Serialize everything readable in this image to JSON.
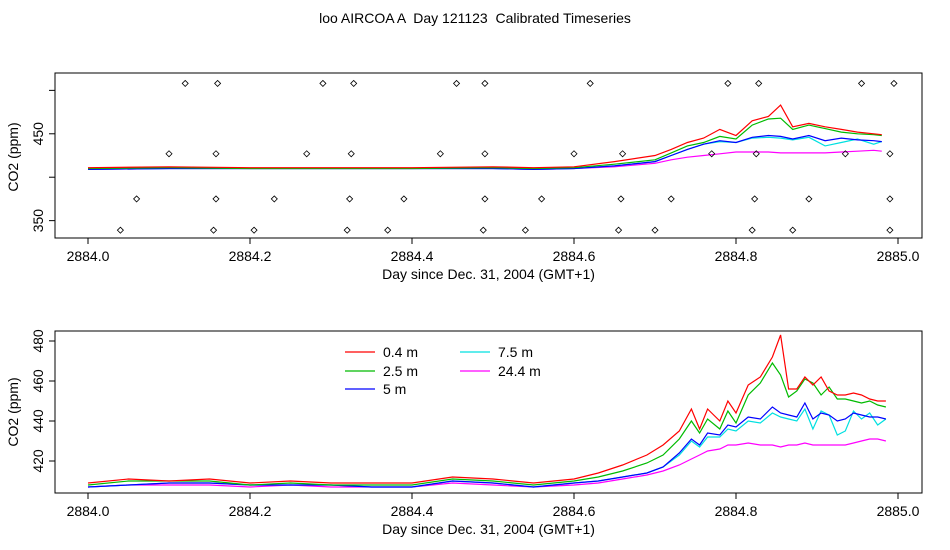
{
  "title": "loo AIRCOA A  Day 121123  Calibrated Timeseries",
  "chart_data": [
    {
      "type": "line",
      "ylabel": "CO2 (ppm)",
      "xlabel": "Day since Dec. 31, 2004 (GMT+1)",
      "xlim": [
        2884.0,
        2885.0
      ],
      "ylim": [
        330,
        520
      ],
      "xticks": [
        "2884.0",
        "2884.2",
        "2884.4",
        "2884.6",
        "2884.8",
        "2885.0"
      ],
      "yticks": [
        "350",
        "450"
      ],
      "grid": false,
      "x": [
        2884.0,
        2884.1,
        2884.2,
        2884.3,
        2884.4,
        2884.5,
        2884.55,
        2884.6,
        2884.65,
        2884.7,
        2884.72,
        2884.74,
        2884.76,
        2884.78,
        2884.8,
        2884.82,
        2884.84,
        2884.855,
        2884.87,
        2884.89,
        2884.91,
        2884.93,
        2884.95,
        2884.97,
        2884.98
      ],
      "series": [
        {
          "color": "#ff0000",
          "values": [
            411,
            412,
            411,
            411,
            411,
            412,
            411,
            412,
            418,
            425,
            432,
            440,
            445,
            455,
            448,
            465,
            470,
            483,
            458,
            462,
            458,
            455,
            452,
            450,
            449
          ]
        },
        {
          "color": "#00bb00",
          "values": [
            410,
            411,
            410,
            410,
            410,
            411,
            410,
            411,
            415,
            420,
            428,
            436,
            440,
            447,
            444,
            460,
            467,
            468,
            455,
            460,
            456,
            452,
            450,
            449,
            448
          ]
        },
        {
          "color": "#0000ff",
          "values": [
            409,
            410,
            410,
            410,
            410,
            410,
            409,
            410,
            413,
            418,
            425,
            432,
            438,
            442,
            440,
            446,
            448,
            447,
            444,
            448,
            442,
            445,
            443,
            442,
            441
          ]
        },
        {
          "color": "#00e0e0",
          "values": [
            409,
            410,
            410,
            410,
            410,
            410,
            409,
            410,
            413,
            418,
            425,
            432,
            438,
            441,
            440,
            445,
            446,
            445,
            443,
            446,
            436,
            440,
            444,
            438,
            441
          ]
        },
        {
          "color": "#ff00ff",
          "values": [
            409,
            410,
            410,
            410,
            410,
            410,
            409,
            410,
            412,
            416,
            420,
            423,
            425,
            427,
            429,
            429,
            429,
            428,
            428,
            428,
            428,
            429,
            430,
            431,
            430
          ]
        }
      ],
      "points": {
        "marker": "open-diamond",
        "x": [
          2884.04,
          2884.06,
          2884.1,
          2884.12,
          2884.155,
          2884.158,
          2884.158,
          2884.16,
          2884.205,
          2884.23,
          2884.27,
          2884.29,
          2884.32,
          2884.323,
          2884.325,
          2884.328,
          2884.37,
          2884.39,
          2884.435,
          2884.455,
          2884.488,
          2884.49,
          2884.49,
          2884.49,
          2884.54,
          2884.56,
          2884.6,
          2884.62,
          2884.655,
          2884.658,
          2884.66,
          2884.7,
          2884.72,
          2884.77,
          2884.79,
          2884.82,
          2884.823,
          2884.825,
          2884.828,
          2884.87,
          2884.89,
          2884.935,
          2884.955,
          2884.99,
          2884.99,
          2884.99,
          2884.995
        ],
        "y": [
          339,
          375,
          427,
          508,
          339,
          375,
          427,
          508,
          339,
          375,
          427,
          508,
          339,
          375,
          427,
          508,
          339,
          375,
          427,
          508,
          339,
          375,
          427,
          508,
          339,
          375,
          427,
          508,
          339,
          375,
          427,
          339,
          375,
          427,
          508,
          339,
          375,
          427,
          508,
          339,
          375,
          427,
          508,
          339,
          375,
          427,
          508
        ]
      }
    },
    {
      "type": "line",
      "ylabel": "CO2 (ppm)",
      "xlabel": "Day since Dec. 31, 2004 (GMT+1)",
      "xlim": [
        2884.0,
        2885.0
      ],
      "ylim": [
        404,
        485
      ],
      "xticks": [
        "2884.0",
        "2884.2",
        "2884.4",
        "2884.6",
        "2884.8",
        "2885.0"
      ],
      "yticks": [
        "420",
        "440",
        "460",
        "480"
      ],
      "grid": false,
      "legend": {
        "placement": "top-center"
      },
      "x": [
        2884.0,
        2884.05,
        2884.1,
        2884.15,
        2884.2,
        2884.25,
        2884.3,
        2884.35,
        2884.4,
        2884.45,
        2884.5,
        2884.55,
        2884.6,
        2884.63,
        2884.66,
        2884.69,
        2884.71,
        2884.73,
        2884.745,
        2884.755,
        2884.765,
        2884.78,
        2884.79,
        2884.8,
        2884.815,
        2884.83,
        2884.845,
        2884.855,
        2884.865,
        2884.875,
        2884.885,
        2884.895,
        2884.905,
        2884.915,
        2884.925,
        2884.935,
        2884.945,
        2884.955,
        2884.965,
        2884.975,
        2884.985
      ],
      "series": [
        {
          "name": "0.4 m",
          "color": "#ff0000",
          "values": [
            409,
            411,
            410,
            411,
            409,
            410,
            409,
            409,
            409,
            412,
            411,
            409,
            411,
            414,
            418,
            423,
            428,
            435,
            446,
            436,
            446,
            440,
            450,
            444,
            458,
            462,
            472,
            483,
            456,
            456,
            462,
            458,
            462,
            455,
            453,
            453,
            454,
            453,
            451,
            450,
            450
          ]
        },
        {
          "name": "2.5 m",
          "color": "#00bb00",
          "values": [
            408,
            410,
            410,
            410,
            408,
            409,
            408,
            408,
            408,
            411,
            410,
            408,
            410,
            412,
            415,
            419,
            423,
            431,
            440,
            434,
            441,
            436,
            445,
            439,
            453,
            459,
            469,
            463,
            452,
            455,
            461,
            459,
            453,
            457,
            451,
            451,
            450,
            449,
            450,
            448,
            447
          ]
        },
        {
          "name": "5 m",
          "color": "#0000ff",
          "values": [
            407,
            408,
            409,
            409,
            408,
            408,
            408,
            407,
            407,
            410,
            409,
            407,
            409,
            410,
            412,
            414,
            417,
            424,
            431,
            428,
            434,
            433,
            438,
            437,
            442,
            441,
            447,
            444,
            443,
            442,
            449,
            441,
            444,
            443,
            440,
            441,
            444,
            443,
            442,
            442,
            441
          ]
        },
        {
          "name": "7.5 m",
          "color": "#00e0e0",
          "values": [
            407,
            408,
            409,
            409,
            408,
            408,
            408,
            407,
            407,
            410,
            409,
            407,
            409,
            410,
            412,
            414,
            417,
            423,
            430,
            427,
            432,
            432,
            436,
            435,
            440,
            439,
            444,
            442,
            441,
            440,
            446,
            436,
            445,
            443,
            433,
            435,
            445,
            441,
            444,
            438,
            441
          ]
        },
        {
          "name": "24.4 m",
          "color": "#ff00ff",
          "values": [
            407,
            408,
            408,
            408,
            407,
            408,
            407,
            407,
            407,
            409,
            408,
            407,
            408,
            409,
            411,
            413,
            415,
            418,
            421,
            423,
            425,
            426,
            428,
            428,
            429,
            428,
            428,
            427,
            428,
            428,
            429,
            428,
            428,
            428,
            428,
            428,
            429,
            430,
            431,
            431,
            430
          ]
        }
      ]
    }
  ]
}
